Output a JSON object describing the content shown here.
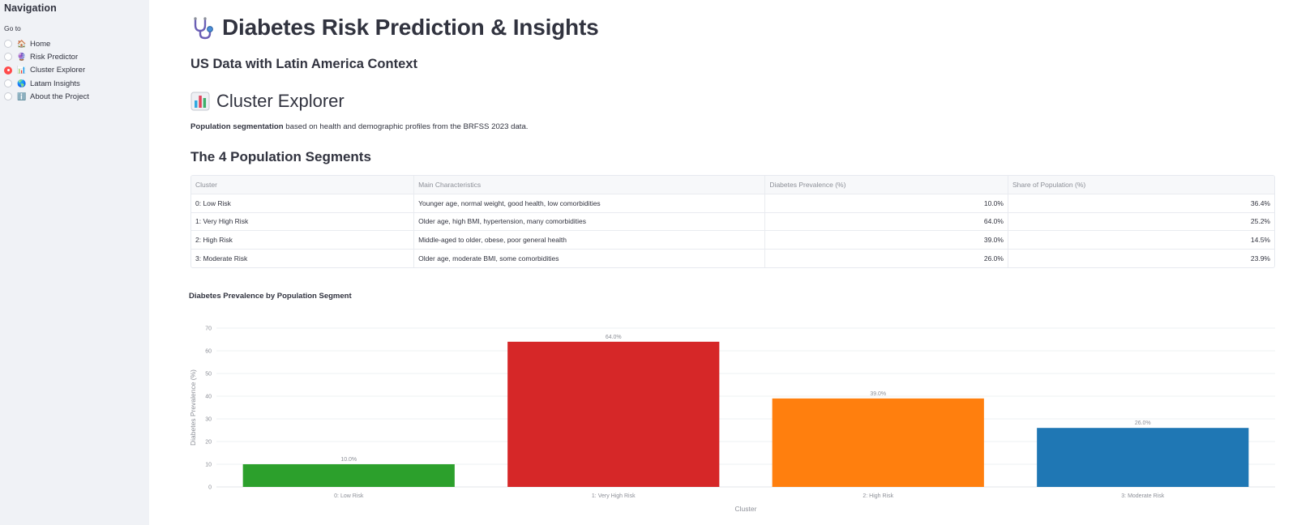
{
  "sidebar": {
    "title": "Navigation",
    "goto_label": "Go to",
    "items": [
      {
        "label": "Home",
        "emoji": "🏠",
        "selected": false
      },
      {
        "label": "Risk Predictor",
        "emoji": "🔮",
        "selected": false
      },
      {
        "label": "Cluster Explorer",
        "emoji": "📊",
        "selected": true
      },
      {
        "label": "Latam Insights",
        "emoji": "🌎",
        "selected": false
      },
      {
        "label": "About the Project",
        "emoji": "ℹ️",
        "selected": false
      }
    ]
  },
  "header": {
    "title": "Diabetes Risk Prediction & Insights",
    "subtitle": "US Data with Latin America Context"
  },
  "page": {
    "section_title": "Cluster Explorer",
    "desc_bold": "Population segmentation",
    "desc_rest": " based on health and demographic profiles from the BRFSS 2023 data.",
    "segments_title": "The 4 Population Segments"
  },
  "table": {
    "columns": [
      "Cluster",
      "Main Characteristics",
      "Diabetes Prevalence (%)",
      "Share of Population (%)"
    ],
    "rows": [
      [
        "0: Low Risk",
        "Younger age, normal weight, good health, low comorbidities",
        "10.0%",
        "36.4%"
      ],
      [
        "1: Very High Risk",
        "Older age, high BMI, hypertension, many comorbidities",
        "64.0%",
        "25.2%"
      ],
      [
        "2: High Risk",
        "Middle-aged to older, obese, poor general health",
        "39.0%",
        "14.5%"
      ],
      [
        "3: Moderate Risk",
        "Older age, moderate BMI, some comorbidities",
        "26.0%",
        "23.9%"
      ]
    ]
  },
  "chart_data": {
    "type": "bar",
    "title": "Diabetes Prevalence by Population Segment",
    "categories": [
      "0: Low Risk",
      "1: Very High Risk",
      "2: High Risk",
      "3: Moderate Risk"
    ],
    "values": [
      10.0,
      64.0,
      39.0,
      26.0
    ],
    "data_labels": [
      "10.0%",
      "64.0%",
      "39.0%",
      "26.0%"
    ],
    "colors": [
      "#2ca02c",
      "#d62728",
      "#ff7f0e",
      "#1f77b4"
    ],
    "xlabel": "Cluster",
    "ylabel": "Diabetes Prevalence (%)",
    "ylim": [
      0,
      70
    ],
    "yticks": [
      0,
      10,
      20,
      30,
      40,
      50,
      60,
      70
    ],
    "grid": true
  }
}
